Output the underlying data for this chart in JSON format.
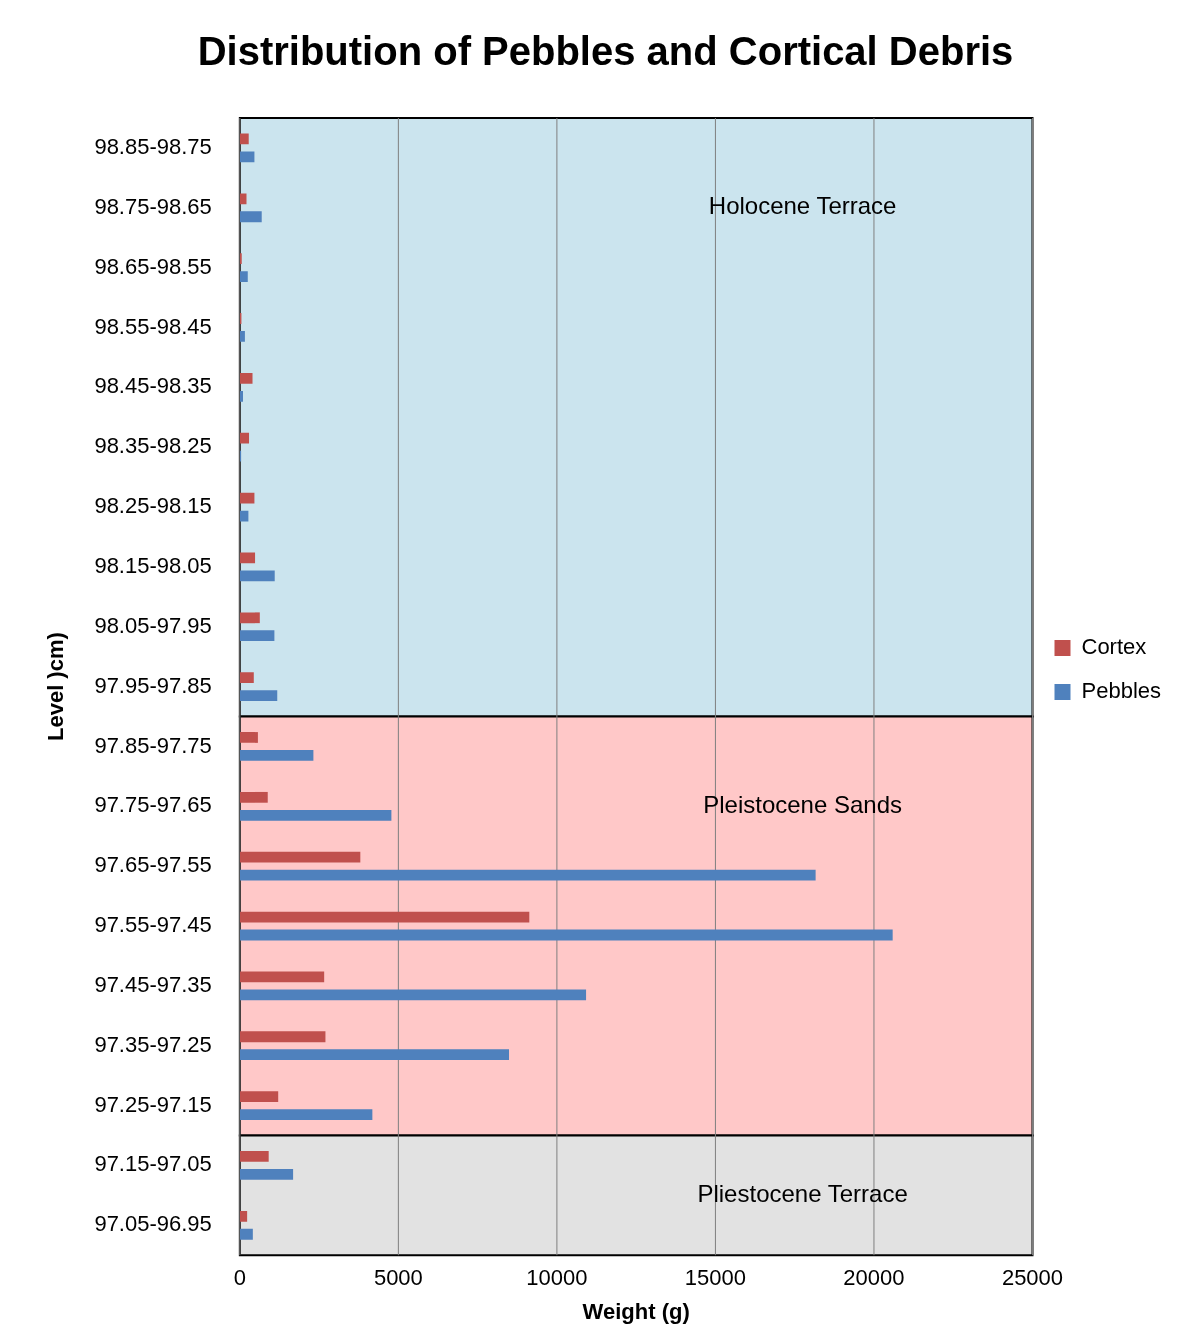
{
  "chart_data": {
    "type": "bar",
    "orientation": "horizontal",
    "title": "Distribution of Pebbles and Cortical Debris",
    "xlabel": "Weight (g)",
    "ylabel": "Level )cm)",
    "categories": [
      "98.85-98.75",
      "98.75-98.65",
      "98.65-98.55",
      "98.55-98.45",
      "98.45-98.35",
      "98.35-98.25",
      "98.25-98.15",
      "98.15-98.05",
      "98.05-97.95",
      "97.95-97.85",
      "97.85-97.75",
      "97.75-97.65",
      "97.65-97.55",
      "97.55-97.45",
      "97.45-97.35",
      "97.35-97.25",
      "97.25-97.15",
      "97.15-97.05",
      "97.05-96.95"
    ],
    "series": [
      {
        "name": "Cortex",
        "color": "#c0504d",
        "values": [
          280,
          210,
          60,
          50,
          400,
          290,
          460,
          480,
          630,
          440,
          570,
          880,
          3800,
          9130,
          2660,
          2700,
          1210,
          910,
          230
        ]
      },
      {
        "name": "Pebbles",
        "color": "#4f81bd",
        "values": [
          460,
          690,
          250,
          160,
          100,
          40,
          270,
          1100,
          1090,
          1180,
          2320,
          4780,
          18160,
          20590,
          10920,
          8490,
          4180,
          1680,
          410
        ]
      }
    ],
    "xlim": [
      0,
      25000
    ],
    "xticks": [
      0,
      5000,
      10000,
      15000,
      20000,
      25000
    ],
    "grid": "x",
    "legend": "right",
    "bands": [
      {
        "axis": "y",
        "from": "98.85-98.75",
        "to": "97.95-97.85",
        "label": "Holocene Terrace",
        "color": "#cbe4ee"
      },
      {
        "axis": "y",
        "from": "97.85-97.75",
        "to": "97.25-97.15",
        "label": "Pleistocene Sands",
        "color": "#ffc8c8"
      },
      {
        "axis": "y",
        "from": "97.15-97.05",
        "to": "97.05-96.95",
        "label": "Pliestocene Terrace",
        "color": "#e2e2e2"
      }
    ]
  }
}
